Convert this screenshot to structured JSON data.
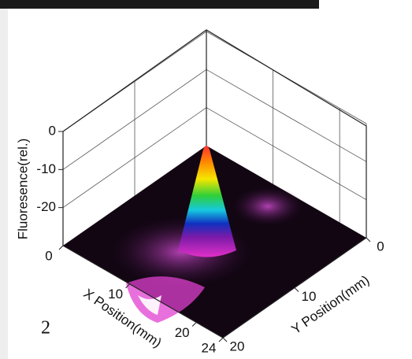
{
  "panel_label": "2",
  "chart_data": {
    "type": "surface3d",
    "xlabel": "X Position(mm)",
    "ylabel": "Y Position(mm)",
    "zlabel": "Fluoresence(rel.)",
    "xlim": [
      0,
      24
    ],
    "xticks": [
      0,
      10,
      20,
      24
    ],
    "ylim": [
      0,
      20
    ],
    "yticks": [
      0,
      10,
      20
    ],
    "zlim": [
      -30,
      0
    ],
    "zticks": [
      -20,
      -10,
      0
    ],
    "grid": true
  }
}
